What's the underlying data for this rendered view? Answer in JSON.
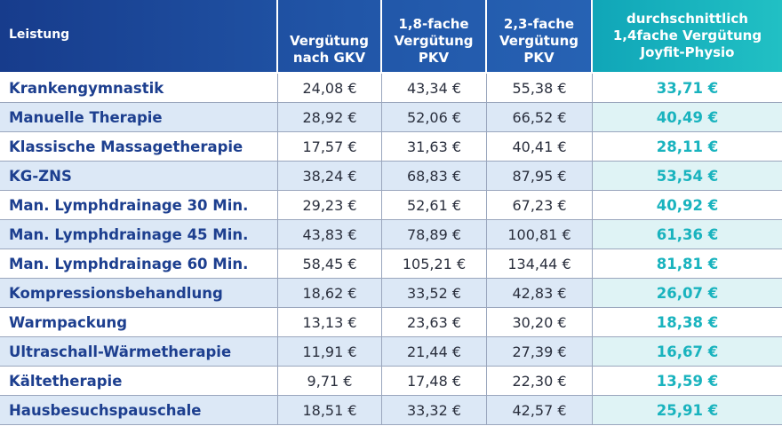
{
  "headers": [
    "Leistung",
    "Vergütung\nnach GKV",
    "1,8-fache\nVergütung\nPKV",
    "2,3-fache\nVergütung\nPKV",
    "durchschnittlich\n1,4fache Vergütung\nJoyfit-Physio"
  ],
  "rows": [
    {
      "name": "Krankengymnastik",
      "gkv": "24,08 €",
      "pkv18": "43,34 €",
      "pkv23": "55,38 €",
      "joyfit": "33,71 €"
    },
    {
      "name": "Manuelle Therapie",
      "gkv": "28,92 €",
      "pkv18": "52,06 €",
      "pkv23": "66,52 €",
      "joyfit": "40,49 €"
    },
    {
      "name": "Klassische Massagetherapie",
      "gkv": "17,57 €",
      "pkv18": "31,63 €",
      "pkv23": "40,41 €",
      "joyfit": "28,11 €"
    },
    {
      "name": "KG-ZNS",
      "gkv": "38,24 €",
      "pkv18": "68,83 €",
      "pkv23": "87,95 €",
      "joyfit": "53,54 €"
    },
    {
      "name": "Man. Lymphdrainage 30 Min.",
      "gkv": "29,23 €",
      "pkv18": "52,61 €",
      "pkv23": "67,23 €",
      "joyfit": "40,92 €"
    },
    {
      "name": "Man. Lymphdrainage 45 Min.",
      "gkv": "43,83 €",
      "pkv18": "78,89 €",
      "pkv23": "100,81 €",
      "joyfit": "61,36 €"
    },
    {
      "name": "Man. Lymphdrainage 60 Min.",
      "gkv": "58,45 €",
      "pkv18": "105,21 €",
      "pkv23": "134,44 €",
      "joyfit": "81,81 €"
    },
    {
      "name": "Kompressionsbehandlung",
      "gkv": "18,62 €",
      "pkv18": "33,52 €",
      "pkv23": "42,83 €",
      "joyfit": "26,07 €"
    },
    {
      "name": "Warmpackung",
      "gkv": "13,13 €",
      "pkv18": "23,63 €",
      "pkv23": "30,20 €",
      "joyfit": "18,38 €"
    },
    {
      "name": "Ultraschall-Wärmetherapie",
      "gkv": "11,91 €",
      "pkv18": "21,44 €",
      "pkv23": "27,39 €",
      "joyfit": "16,67 €"
    },
    {
      "name": "Kältetherapie",
      "gkv": "9,71 €",
      "pkv18": "17,48 €",
      "pkv23": "22,30 €",
      "joyfit": "13,59 €"
    },
    {
      "name": "Hausbesuchspauschale",
      "gkv": "18,51 €",
      "pkv18": "33,32 €",
      "pkv23": "42,57 €",
      "joyfit": "25,91 €"
    }
  ],
  "colors": {
    "header_blue": "#1d4c9f",
    "header_teal": "#19b3be",
    "name_text": "#1d3f8f",
    "highlight_text": "#19b3be",
    "alt_row": "#dce8f6"
  }
}
